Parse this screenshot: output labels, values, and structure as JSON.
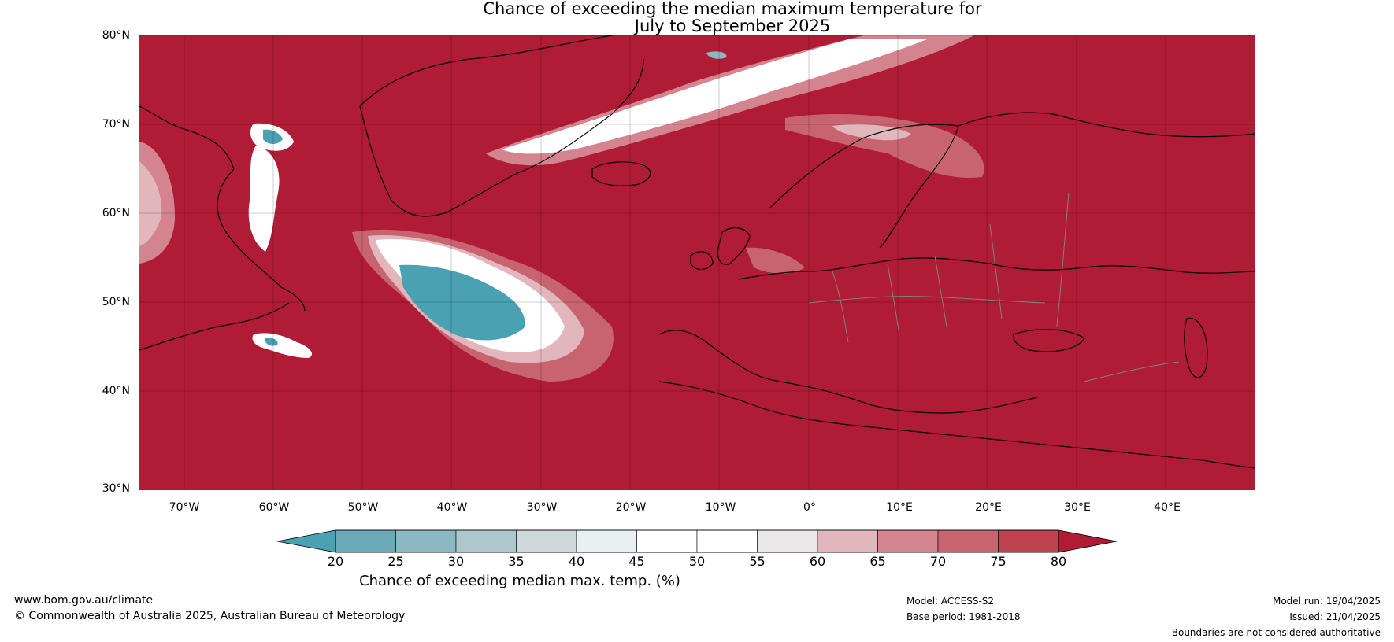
{
  "title": {
    "line1": "Chance of exceeding the median maximum temperature for",
    "line2": "July to September 2025"
  },
  "map": {
    "lat_labels": [
      "80°N",
      "70°N",
      "60°N",
      "50°N",
      "40°N",
      "30°N"
    ],
    "lon_labels": [
      "70°W",
      "60°W",
      "50°W",
      "40°W",
      "30°W",
      "20°W",
      "10°W",
      "0°",
      "10°E",
      "20°E",
      "30°E",
      "40°E"
    ],
    "lat_range": [
      30,
      81
    ],
    "lon_range": [
      -75,
      50
    ],
    "background_color": "#b01b36",
    "land_outline_color": "#000000",
    "border_color": "#808080"
  },
  "colorbar": {
    "ticks": [
      "20",
      "25",
      "30",
      "35",
      "40",
      "45",
      "50",
      "55",
      "60",
      "65",
      "70",
      "75",
      "80"
    ],
    "colors": [
      "#4aa1b2",
      "#6aaab6",
      "#8cb8c3",
      "#adc7cc",
      "#cfd9dc",
      "#e9f0f1",
      "#ffffff",
      "#ffffff",
      "#ebe6e7",
      "#e1b7bd",
      "#d3848e",
      "#c7646f",
      "#be434f",
      "#b01b36"
    ],
    "label": "Chance of exceeding median max. temp. (%)"
  },
  "footer": {
    "website": "www.bom.gov.au/climate",
    "copyright": "© Commonwealth of Australia 2025, Australian Bureau of Meteorology",
    "model": "Model: ACCESS-S2",
    "base_period": "Base period: 1981-2018",
    "model_run": "Model run: 19/04/2025",
    "issued": "Issued: 21/04/2025",
    "boundaries_note": "Boundaries are not considered authoritative"
  }
}
